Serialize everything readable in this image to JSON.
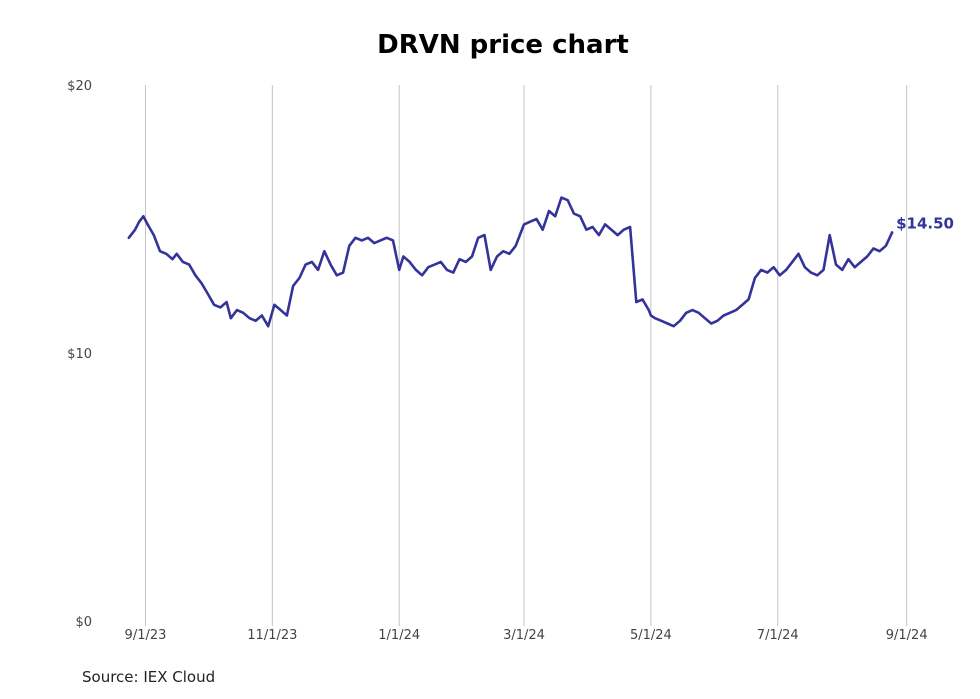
{
  "chart_data": {
    "type": "line",
    "title": "DRVN price chart",
    "xlabel": "",
    "ylabel": "",
    "grid": {
      "vertical": true,
      "horizontal": false
    },
    "ylim": [
      0,
      20
    ],
    "y_ticks": [
      0,
      10,
      20
    ],
    "y_tick_labels": [
      "$0",
      "$10",
      "$20"
    ],
    "xlim": [
      "2023-08-26",
      "2024-09-05"
    ],
    "x_ticks": [
      "2023-09-01",
      "2023-11-01",
      "2024-01-01",
      "2024-03-01",
      "2024-05-01",
      "2024-07-01",
      "2024-09-01"
    ],
    "x_tick_labels": [
      "9/1/23",
      "11/1/23",
      "1/1/24",
      "3/1/24",
      "5/1/24",
      "7/1/24",
      "9/1/24"
    ],
    "line_color": "#33339a",
    "series": [
      {
        "x": [
          "2023-08-24",
          "2023-08-27",
          "2023-08-29",
          "2023-08-31",
          "2023-09-02",
          "2023-09-05",
          "2023-09-08",
          "2023-09-11",
          "2023-09-14",
          "2023-09-16",
          "2023-09-19",
          "2023-09-22",
          "2023-09-25",
          "2023-09-28",
          "2023-10-01",
          "2023-10-04",
          "2023-10-07",
          "2023-10-10",
          "2023-10-12",
          "2023-10-15",
          "2023-10-18",
          "2023-10-21",
          "2023-10-24",
          "2023-10-27",
          "2023-10-30",
          "2023-11-02",
          "2023-11-05",
          "2023-11-08",
          "2023-11-11",
          "2023-11-14",
          "2023-11-17",
          "2023-11-20",
          "2023-11-23",
          "2023-11-26",
          "2023-11-29",
          "2023-12-02",
          "2023-12-05",
          "2023-12-08",
          "2023-12-11",
          "2023-12-14",
          "2023-12-17",
          "2023-12-20",
          "2023-12-23",
          "2023-12-26",
          "2023-12-29",
          "2024-01-01",
          "2024-01-03",
          "2024-01-06",
          "2024-01-09",
          "2024-01-12",
          "2024-01-15",
          "2024-01-18",
          "2024-01-21",
          "2024-01-24",
          "2024-01-27",
          "2024-01-30",
          "2024-02-02",
          "2024-02-05",
          "2024-02-08",
          "2024-02-11",
          "2024-02-14",
          "2024-02-17",
          "2024-02-20",
          "2024-02-23",
          "2024-02-26",
          "2024-03-01",
          "2024-03-04",
          "2024-03-07",
          "2024-03-10",
          "2024-03-13",
          "2024-03-16",
          "2024-03-19",
          "2024-03-22",
          "2024-03-25",
          "2024-03-28",
          "2024-03-31",
          "2024-04-03",
          "2024-04-06",
          "2024-04-09",
          "2024-04-12",
          "2024-04-15",
          "2024-04-18",
          "2024-04-21",
          "2024-04-24",
          "2024-04-27",
          "2024-04-30",
          "2024-05-01",
          "2024-05-03",
          "2024-05-06",
          "2024-05-09",
          "2024-05-12",
          "2024-05-15",
          "2024-05-18",
          "2024-05-21",
          "2024-05-24",
          "2024-05-27",
          "2024-05-30",
          "2024-06-02",
          "2024-06-05",
          "2024-06-08",
          "2024-06-11",
          "2024-06-14",
          "2024-06-17",
          "2024-06-20",
          "2024-06-23",
          "2024-06-26",
          "2024-06-29",
          "2024-07-02",
          "2024-07-05",
          "2024-07-08",
          "2024-07-11",
          "2024-07-14",
          "2024-07-17",
          "2024-07-20",
          "2024-07-23",
          "2024-07-26",
          "2024-07-29",
          "2024-08-01",
          "2024-08-04",
          "2024-08-07",
          "2024-08-10",
          "2024-08-13",
          "2024-08-16",
          "2024-08-19",
          "2024-08-22",
          "2024-08-25"
        ],
        "values": [
          14.3,
          14.6,
          14.9,
          15.1,
          14.8,
          14.4,
          13.8,
          13.7,
          13.5,
          13.7,
          13.4,
          13.3,
          12.9,
          12.6,
          12.2,
          11.8,
          11.7,
          11.9,
          11.3,
          11.6,
          11.5,
          11.3,
          11.2,
          11.4,
          11.0,
          11.8,
          11.6,
          11.4,
          12.5,
          12.8,
          13.3,
          13.4,
          13.1,
          13.8,
          13.3,
          12.9,
          13.0,
          14.0,
          14.3,
          14.2,
          14.3,
          14.1,
          14.2,
          14.3,
          14.2,
          13.1,
          13.6,
          13.4,
          13.1,
          12.9,
          13.2,
          13.3,
          13.4,
          13.1,
          13.0,
          13.5,
          13.4,
          13.6,
          14.3,
          14.4,
          13.1,
          13.6,
          13.8,
          13.7,
          14.0,
          14.8,
          14.9,
          15.0,
          14.6,
          15.3,
          15.1,
          15.8,
          15.7,
          15.2,
          15.1,
          14.6,
          14.7,
          14.4,
          14.8,
          14.6,
          14.4,
          14.6,
          14.7,
          11.9,
          12.0,
          11.6,
          11.4,
          11.3,
          11.2,
          11.1,
          11.0,
          11.2,
          11.5,
          11.6,
          11.5,
          11.3,
          11.1,
          11.2,
          11.4,
          11.5,
          11.6,
          11.8,
          12.0,
          12.8,
          13.1,
          13.0,
          13.2,
          12.9,
          13.1,
          13.4,
          13.7,
          13.2,
          13.0,
          12.9,
          13.1,
          14.4,
          13.3,
          13.1,
          13.5,
          13.2,
          13.4,
          13.6,
          13.9,
          13.8,
          14.0,
          14.5
        ]
      }
    ],
    "end_value_label": "$14.50"
  },
  "source_label": "Source: IEX Cloud"
}
